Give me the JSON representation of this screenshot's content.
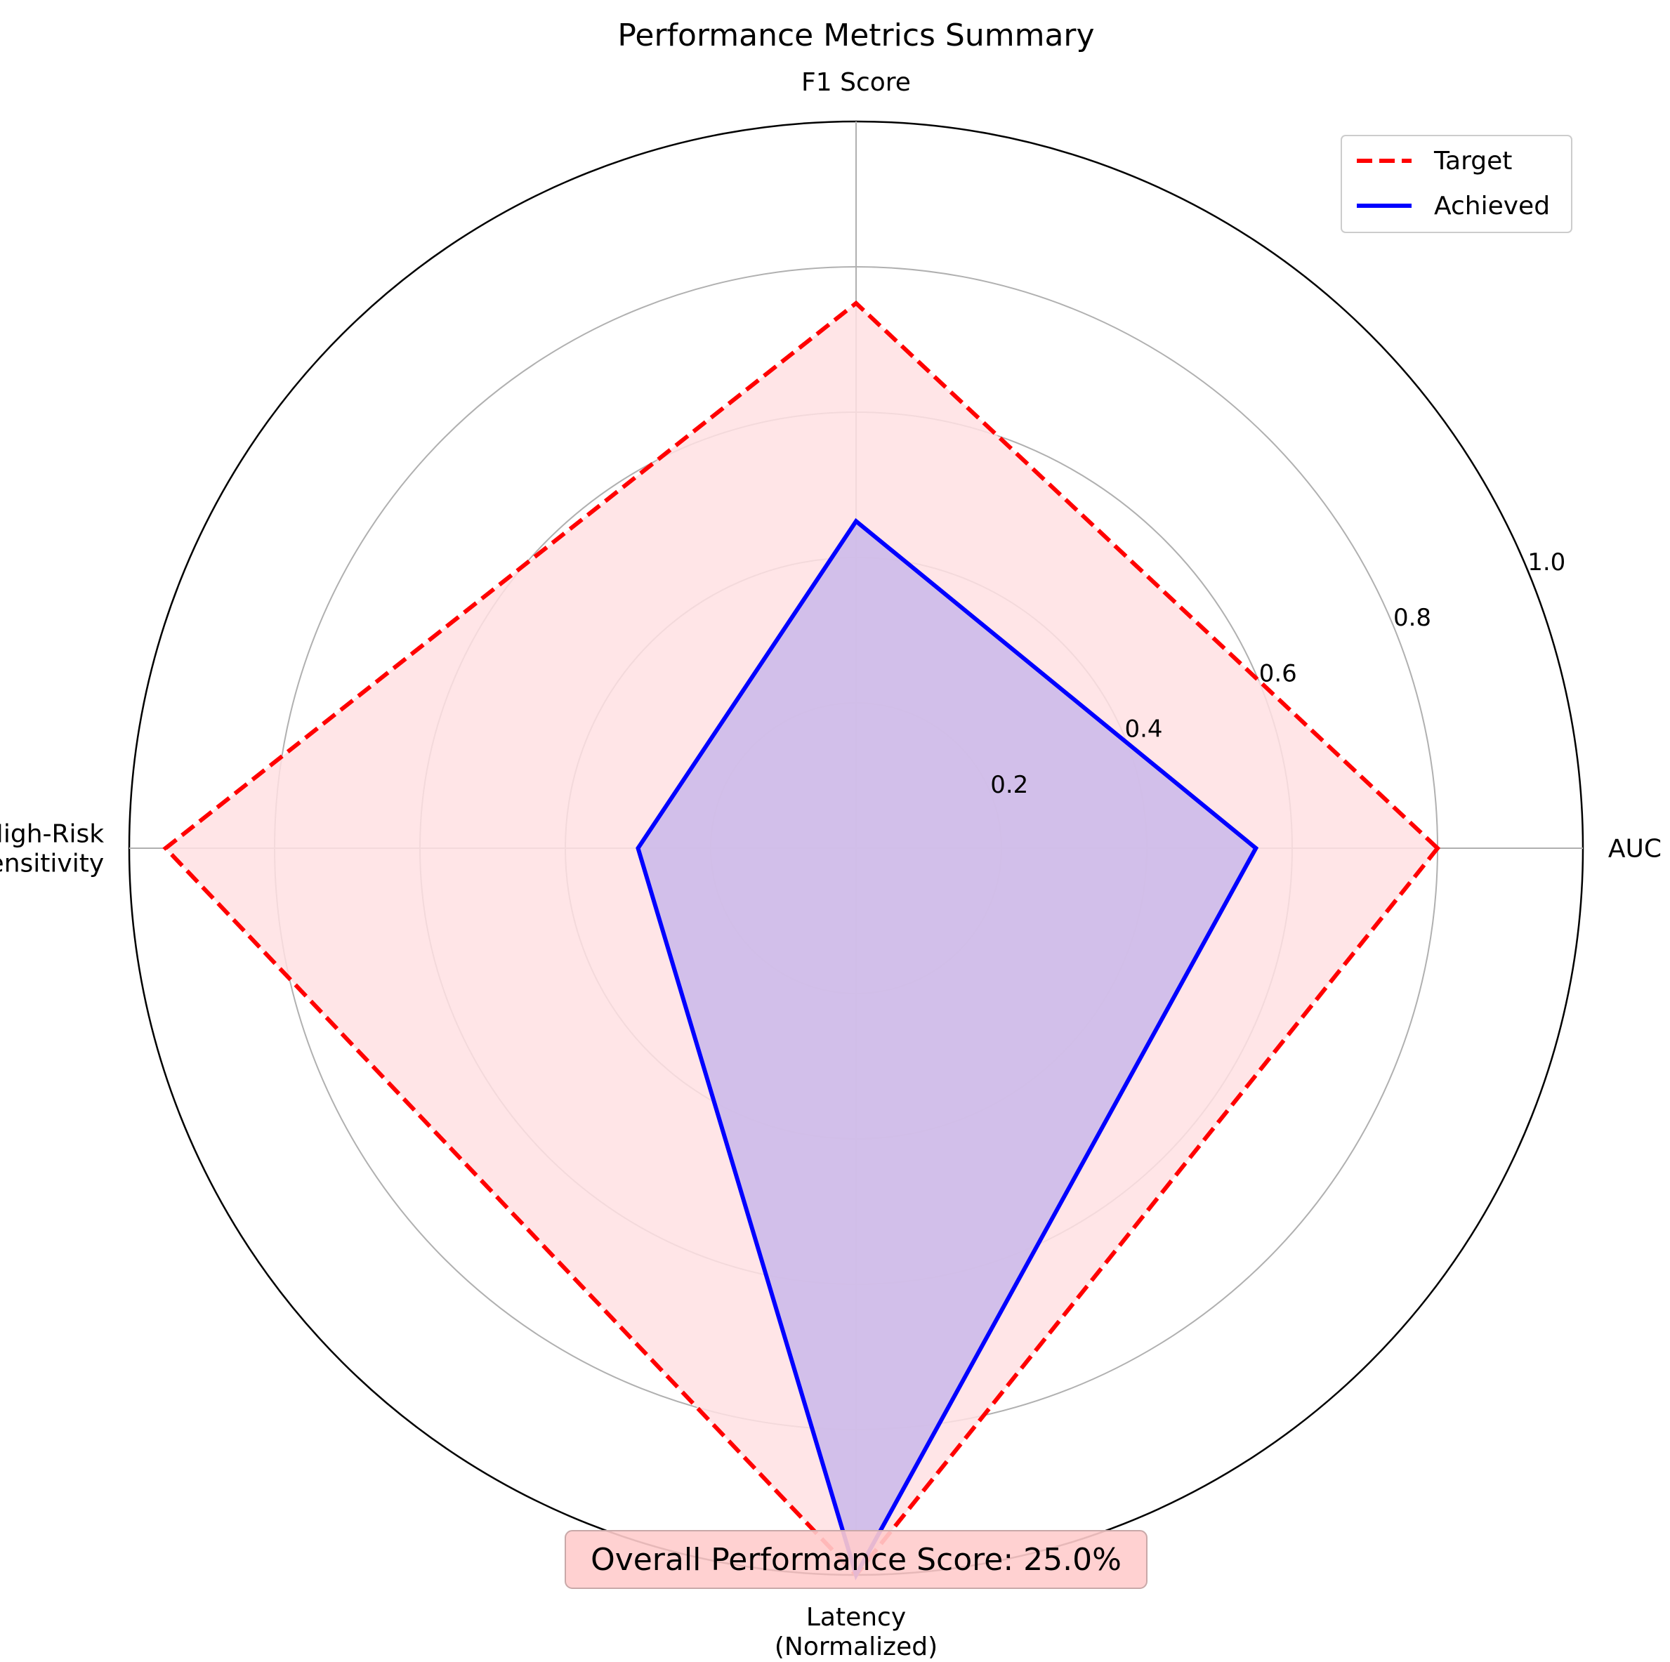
{
  "chart_data": {
    "type": "radar",
    "title": "Performance Metrics Summary",
    "axes": [
      "AUC",
      "F1 Score",
      "High-Risk\nSensitivity",
      "Latency\n(Normalized)"
    ],
    "radial_ticks": [
      0.2,
      0.4,
      0.6,
      0.8,
      1.0
    ],
    "radial_tick_labels": [
      "0.2",
      "0.4",
      "0.6",
      "0.8",
      "1.0"
    ],
    "rlim": [
      0,
      1.0
    ],
    "grid": true,
    "legend_position": "top-right",
    "series": [
      {
        "name": "Target",
        "values": [
          0.8,
          0.75,
          0.95,
          1.0
        ],
        "color": "#ff0000",
        "fill": "#ffe0e3",
        "line_style": "dashed"
      },
      {
        "name": "Achieved",
        "values": [
          0.55,
          0.45,
          0.3,
          1.0
        ],
        "color": "#0000ff",
        "fill": "#cab8ea",
        "line_style": "solid"
      }
    ],
    "annotation": "Overall Performance Score: 25.0%",
    "annotation_color": "#ffcccc"
  }
}
